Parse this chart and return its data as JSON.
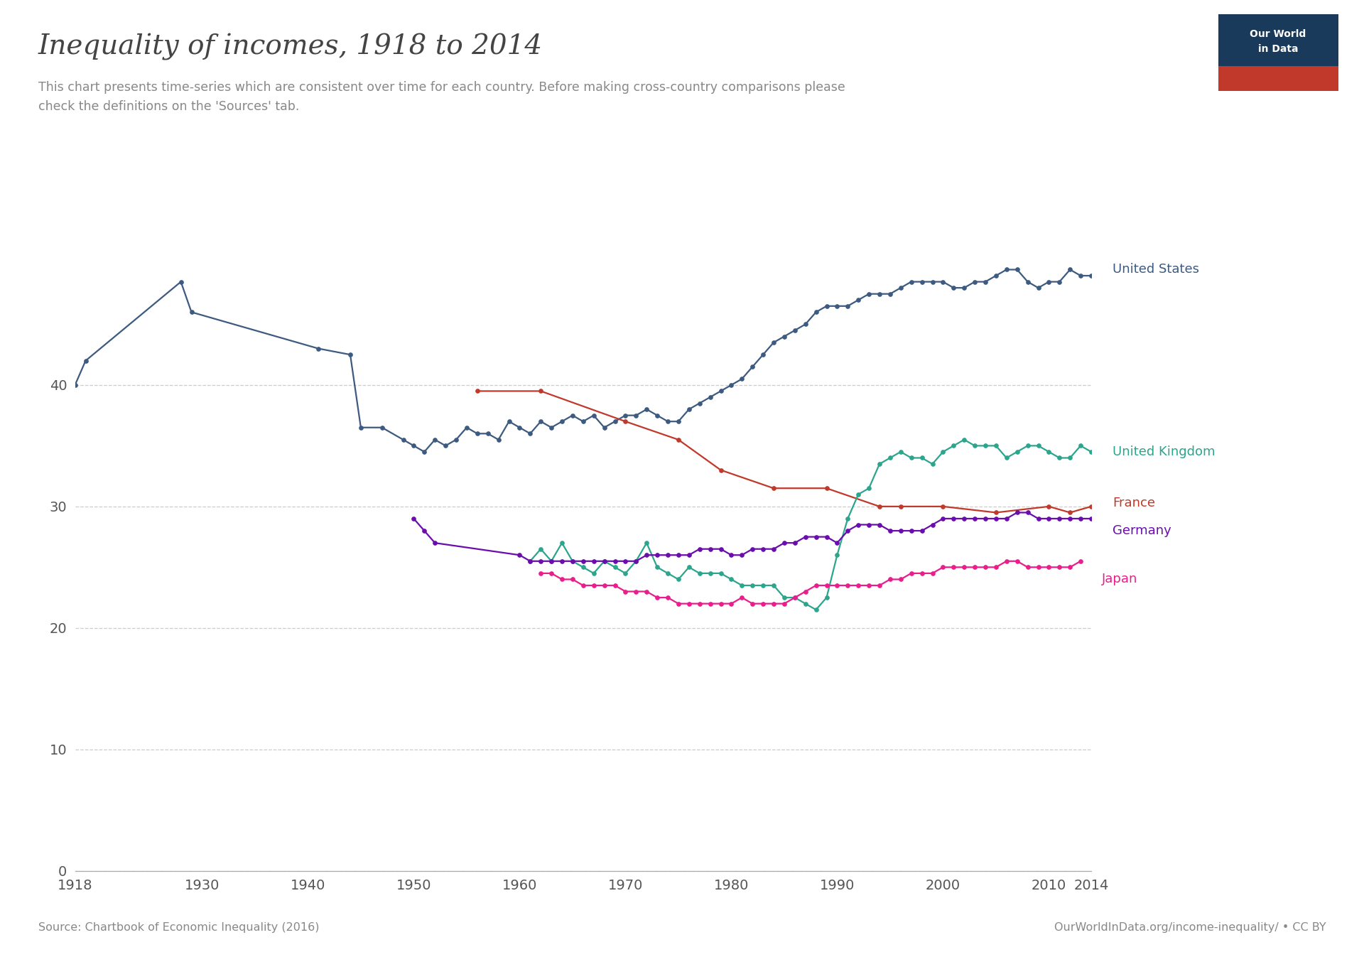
{
  "title": "Inequality of incomes, 1918 to 2014",
  "subtitle": "This chart presents time-series which are consistent over time for each country. Before making cross-country comparisons please\ncheck the definitions on the 'Sources' tab.",
  "source_left": "Source: Chartbook of Economic Inequality (2016)",
  "source_right": "OurWorldInData.org/income-inequality/ • CC BY",
  "background_color": "#ffffff",
  "plot_background": "#ffffff",
  "series": [
    {
      "name": "United States",
      "color": "#3d5a80",
      "data": [
        [
          1918,
          40.0
        ],
        [
          1919,
          42.0
        ],
        [
          1928,
          48.5
        ],
        [
          1929,
          46.0
        ],
        [
          1941,
          43.0
        ],
        [
          1944,
          42.5
        ],
        [
          1945,
          36.5
        ],
        [
          1947,
          36.5
        ],
        [
          1949,
          35.5
        ],
        [
          1950,
          35.0
        ],
        [
          1951,
          34.5
        ],
        [
          1952,
          35.5
        ],
        [
          1953,
          35.0
        ],
        [
          1954,
          35.5
        ],
        [
          1955,
          36.5
        ],
        [
          1956,
          36.0
        ],
        [
          1957,
          36.0
        ],
        [
          1958,
          35.5
        ],
        [
          1959,
          37.0
        ],
        [
          1960,
          36.5
        ],
        [
          1961,
          36.0
        ],
        [
          1962,
          37.0
        ],
        [
          1963,
          36.5
        ],
        [
          1964,
          37.0
        ],
        [
          1965,
          37.5
        ],
        [
          1966,
          37.0
        ],
        [
          1967,
          37.5
        ],
        [
          1968,
          36.5
        ],
        [
          1969,
          37.0
        ],
        [
          1970,
          37.5
        ],
        [
          1971,
          37.5
        ],
        [
          1972,
          38.0
        ],
        [
          1973,
          37.5
        ],
        [
          1974,
          37.0
        ],
        [
          1975,
          37.0
        ],
        [
          1976,
          38.0
        ],
        [
          1977,
          38.5
        ],
        [
          1978,
          39.0
        ],
        [
          1979,
          39.5
        ],
        [
          1980,
          40.0
        ],
        [
          1981,
          40.5
        ],
        [
          1982,
          41.5
        ],
        [
          1983,
          42.5
        ],
        [
          1984,
          43.5
        ],
        [
          1985,
          44.0
        ],
        [
          1986,
          44.5
        ],
        [
          1987,
          45.0
        ],
        [
          1988,
          46.0
        ],
        [
          1989,
          46.5
        ],
        [
          1990,
          46.5
        ],
        [
          1991,
          46.5
        ],
        [
          1992,
          47.0
        ],
        [
          1993,
          47.5
        ],
        [
          1994,
          47.5
        ],
        [
          1995,
          47.5
        ],
        [
          1996,
          48.0
        ],
        [
          1997,
          48.5
        ],
        [
          1998,
          48.5
        ],
        [
          1999,
          48.5
        ],
        [
          2000,
          48.5
        ],
        [
          2001,
          48.0
        ],
        [
          2002,
          48.0
        ],
        [
          2003,
          48.5
        ],
        [
          2004,
          48.5
        ],
        [
          2005,
          49.0
        ],
        [
          2006,
          49.5
        ],
        [
          2007,
          49.5
        ],
        [
          2008,
          48.5
        ],
        [
          2009,
          48.0
        ],
        [
          2010,
          48.5
        ],
        [
          2011,
          48.5
        ],
        [
          2012,
          49.5
        ],
        [
          2013,
          49.0
        ],
        [
          2014,
          49.0
        ]
      ]
    },
    {
      "name": "France",
      "color": "#c0392b",
      "data": [
        [
          1956,
          39.5
        ],
        [
          1962,
          39.5
        ],
        [
          1970,
          37.0
        ],
        [
          1975,
          35.5
        ],
        [
          1979,
          33.0
        ],
        [
          1984,
          31.5
        ],
        [
          1989,
          31.5
        ],
        [
          1994,
          30.0
        ],
        [
          1996,
          30.0
        ],
        [
          2000,
          30.0
        ],
        [
          2005,
          29.5
        ],
        [
          2010,
          30.0
        ],
        [
          2012,
          29.5
        ],
        [
          2014,
          30.0
        ]
      ]
    },
    {
      "name": "United Kingdom",
      "color": "#2ca58d",
      "data": [
        [
          1961,
          25.5
        ],
        [
          1962,
          26.5
        ],
        [
          1963,
          25.5
        ],
        [
          1964,
          27.0
        ],
        [
          1965,
          25.5
        ],
        [
          1966,
          25.0
        ],
        [
          1967,
          24.5
        ],
        [
          1968,
          25.5
        ],
        [
          1969,
          25.0
        ],
        [
          1970,
          24.5
        ],
        [
          1971,
          25.5
        ],
        [
          1972,
          27.0
        ],
        [
          1973,
          25.0
        ],
        [
          1974,
          24.5
        ],
        [
          1975,
          24.0
        ],
        [
          1976,
          25.0
        ],
        [
          1977,
          24.5
        ],
        [
          1978,
          24.5
        ],
        [
          1979,
          24.5
        ],
        [
          1980,
          24.0
        ],
        [
          1981,
          23.5
        ],
        [
          1982,
          23.5
        ],
        [
          1983,
          23.5
        ],
        [
          1984,
          23.5
        ],
        [
          1985,
          22.5
        ],
        [
          1986,
          22.5
        ],
        [
          1987,
          22.0
        ],
        [
          1988,
          21.5
        ],
        [
          1989,
          22.5
        ],
        [
          1990,
          26.0
        ],
        [
          1991,
          29.0
        ],
        [
          1992,
          31.0
        ],
        [
          1993,
          31.5
        ],
        [
          1994,
          33.5
        ],
        [
          1995,
          34.0
        ],
        [
          1996,
          34.5
        ],
        [
          1997,
          34.0
        ],
        [
          1998,
          34.0
        ],
        [
          1999,
          33.5
        ],
        [
          2000,
          34.5
        ],
        [
          2001,
          35.0
        ],
        [
          2002,
          35.5
        ],
        [
          2003,
          35.0
        ],
        [
          2004,
          35.0
        ],
        [
          2005,
          35.0
        ],
        [
          2006,
          34.0
        ],
        [
          2007,
          34.5
        ],
        [
          2008,
          35.0
        ],
        [
          2009,
          35.0
        ],
        [
          2010,
          34.5
        ],
        [
          2011,
          34.0
        ],
        [
          2012,
          34.0
        ],
        [
          2013,
          35.0
        ],
        [
          2014,
          34.5
        ]
      ]
    },
    {
      "name": "Germany",
      "color": "#6a0dad",
      "data": [
        [
          1950,
          29.0
        ],
        [
          1951,
          28.0
        ],
        [
          1952,
          27.0
        ],
        [
          1960,
          26.0
        ],
        [
          1961,
          25.5
        ],
        [
          1962,
          25.5
        ],
        [
          1963,
          25.5
        ],
        [
          1964,
          25.5
        ],
        [
          1965,
          25.5
        ],
        [
          1966,
          25.5
        ],
        [
          1967,
          25.5
        ],
        [
          1968,
          25.5
        ],
        [
          1969,
          25.5
        ],
        [
          1970,
          25.5
        ],
        [
          1971,
          25.5
        ],
        [
          1972,
          26.0
        ],
        [
          1973,
          26.0
        ],
        [
          1974,
          26.0
        ],
        [
          1975,
          26.0
        ],
        [
          1976,
          26.0
        ],
        [
          1977,
          26.5
        ],
        [
          1978,
          26.5
        ],
        [
          1979,
          26.5
        ],
        [
          1980,
          26.0
        ],
        [
          1981,
          26.0
        ],
        [
          1982,
          26.5
        ],
        [
          1983,
          26.5
        ],
        [
          1984,
          26.5
        ],
        [
          1985,
          27.0
        ],
        [
          1986,
          27.0
        ],
        [
          1987,
          27.5
        ],
        [
          1988,
          27.5
        ],
        [
          1989,
          27.5
        ],
        [
          1990,
          27.0
        ],
        [
          1991,
          28.0
        ],
        [
          1992,
          28.5
        ],
        [
          1993,
          28.5
        ],
        [
          1994,
          28.5
        ],
        [
          1995,
          28.0
        ],
        [
          1996,
          28.0
        ],
        [
          1997,
          28.0
        ],
        [
          1998,
          28.0
        ],
        [
          1999,
          28.5
        ],
        [
          2000,
          29.0
        ],
        [
          2001,
          29.0
        ],
        [
          2002,
          29.0
        ],
        [
          2003,
          29.0
        ],
        [
          2004,
          29.0
        ],
        [
          2005,
          29.0
        ],
        [
          2006,
          29.0
        ],
        [
          2007,
          29.5
        ],
        [
          2008,
          29.5
        ],
        [
          2009,
          29.0
        ],
        [
          2010,
          29.0
        ],
        [
          2011,
          29.0
        ],
        [
          2012,
          29.0
        ],
        [
          2013,
          29.0
        ],
        [
          2014,
          29.0
        ]
      ]
    },
    {
      "name": "Japan",
      "color": "#e91e8c",
      "data": [
        [
          1962,
          24.5
        ],
        [
          1963,
          24.5
        ],
        [
          1964,
          24.0
        ],
        [
          1965,
          24.0
        ],
        [
          1966,
          23.5
        ],
        [
          1967,
          23.5
        ],
        [
          1968,
          23.5
        ],
        [
          1969,
          23.5
        ],
        [
          1970,
          23.0
        ],
        [
          1971,
          23.0
        ],
        [
          1972,
          23.0
        ],
        [
          1973,
          22.5
        ],
        [
          1974,
          22.5
        ],
        [
          1975,
          22.0
        ],
        [
          1976,
          22.0
        ],
        [
          1977,
          22.0
        ],
        [
          1978,
          22.0
        ],
        [
          1979,
          22.0
        ],
        [
          1980,
          22.0
        ],
        [
          1981,
          22.5
        ],
        [
          1982,
          22.0
        ],
        [
          1983,
          22.0
        ],
        [
          1984,
          22.0
        ],
        [
          1985,
          22.0
        ],
        [
          1986,
          22.5
        ],
        [
          1987,
          23.0
        ],
        [
          1988,
          23.5
        ],
        [
          1989,
          23.5
        ],
        [
          1990,
          23.5
        ],
        [
          1991,
          23.5
        ],
        [
          1992,
          23.5
        ],
        [
          1993,
          23.5
        ],
        [
          1994,
          23.5
        ],
        [
          1995,
          24.0
        ],
        [
          1996,
          24.0
        ],
        [
          1997,
          24.5
        ],
        [
          1998,
          24.5
        ],
        [
          1999,
          24.5
        ],
        [
          2000,
          25.0
        ],
        [
          2001,
          25.0
        ],
        [
          2002,
          25.0
        ],
        [
          2003,
          25.0
        ],
        [
          2004,
          25.0
        ],
        [
          2005,
          25.0
        ],
        [
          2006,
          25.5
        ],
        [
          2007,
          25.5
        ],
        [
          2008,
          25.0
        ],
        [
          2009,
          25.0
        ],
        [
          2010,
          25.0
        ],
        [
          2011,
          25.0
        ],
        [
          2012,
          25.0
        ],
        [
          2013,
          25.5
        ]
      ]
    }
  ],
  "xlim": [
    1918,
    2014
  ],
  "ylim": [
    0,
    52
  ],
  "yticks": [
    0,
    10,
    20,
    30,
    40
  ],
  "xticks": [
    1918,
    1930,
    1940,
    1950,
    1960,
    1970,
    1980,
    1990,
    2000,
    2010,
    2014
  ],
  "owid_box_color_top": "#1a3a5c",
  "owid_box_color_bottom": "#c0392b"
}
